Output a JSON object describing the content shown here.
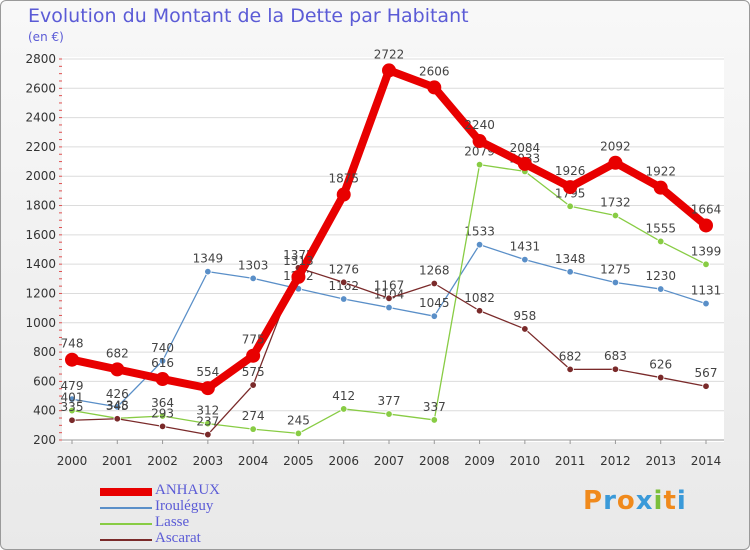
{
  "title": "Evolution du Montant de la Dette par Habitant",
  "subtitle": "(en €)",
  "logo": "Proxiti",
  "colors": {
    "title": "#5b5bd6",
    "logo": [
      "#f08a1c",
      "#3a9ad9",
      "#f08a1c",
      "#3a9ad9",
      "#7bbf3a",
      "#f08a1c",
      "#3a9ad9"
    ]
  },
  "chart_data": {
    "type": "line",
    "categories": [
      "2000",
      "2001",
      "2002",
      "2003",
      "2004",
      "2005",
      "2006",
      "2007",
      "2008",
      "2009",
      "2010",
      "2011",
      "2012",
      "2013",
      "2014"
    ],
    "ylim": [
      200,
      2800
    ],
    "yticks": [
      200,
      400,
      600,
      800,
      1000,
      1200,
      1400,
      1600,
      1800,
      2000,
      2200,
      2400,
      2600,
      2800
    ],
    "grid": "horizontal",
    "legend_position": "bottom-left",
    "series": [
      {
        "name": "ANHAUX",
        "color": "#e80000",
        "width": 8,
        "values": [
          748,
          682,
          616,
          554,
          775,
          1313,
          1875,
          2722,
          2606,
          2240,
          2084,
          1926,
          2092,
          1922,
          1664
        ]
      },
      {
        "name": "Irouléguy",
        "color": "#5a8fc8",
        "width": 1.3,
        "values": [
          479,
          426,
          740,
          1349,
          1303,
          1232,
          1162,
          1104,
          1045,
          1533,
          1431,
          1348,
          1275,
          1230,
          1131
        ]
      },
      {
        "name": "Lasse",
        "color": "#88cc44",
        "width": 1.3,
        "values": [
          401,
          348,
          364,
          312,
          274,
          245,
          412,
          377,
          337,
          2079,
          2033,
          1795,
          1732,
          1555,
          1399
        ]
      },
      {
        "name": "Ascarat",
        "color": "#7a2a2a",
        "width": 1.3,
        "values": [
          335,
          345,
          293,
          237,
          575,
          1375,
          1276,
          1167,
          1268,
          1082,
          958,
          682,
          683,
          626,
          567
        ]
      }
    ]
  }
}
